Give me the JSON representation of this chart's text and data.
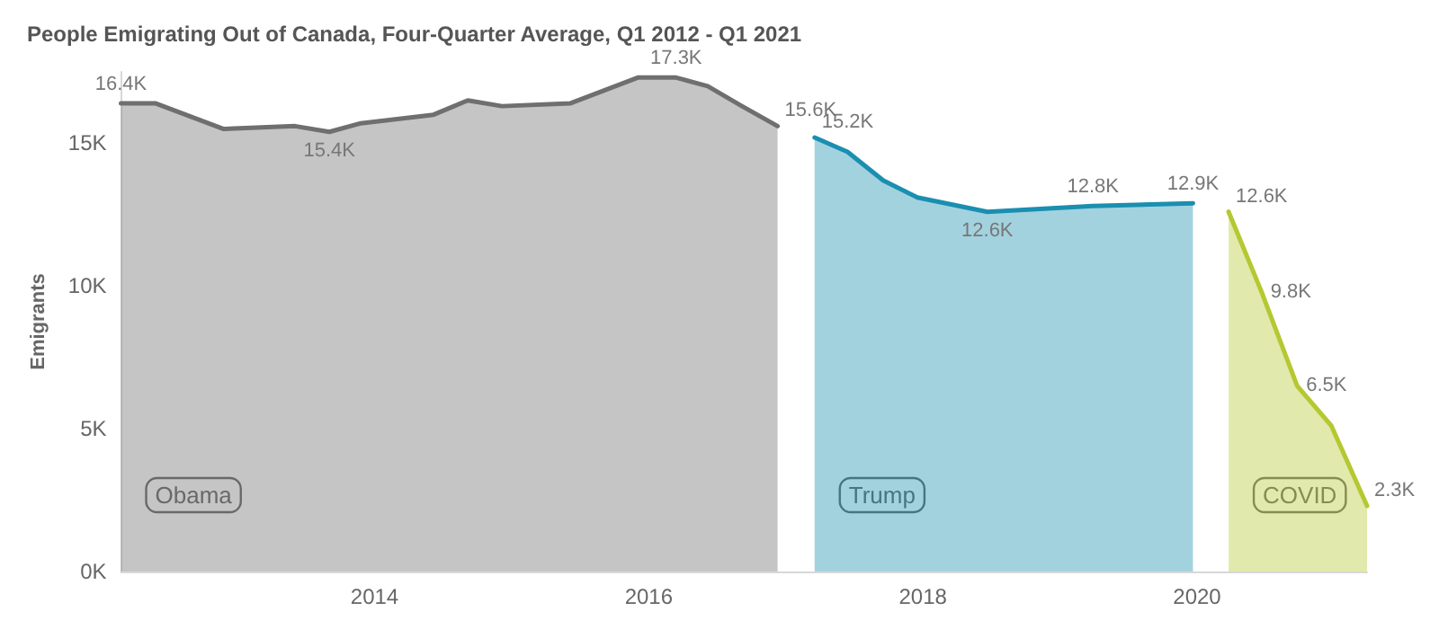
{
  "chart_data": {
    "type": "area",
    "title": "People Emigrating Out of Canada, Four-Quarter Average, Q1 2012 - Q1 2021",
    "ylabel": "Emigrants",
    "xlim": [
      2012.15,
      2021.24
    ],
    "xticks": [
      2014,
      2016,
      2018,
      2020
    ],
    "ylim": [
      0,
      17.5
    ],
    "yticks": [
      {
        "value": 0,
        "label": "0K"
      },
      {
        "value": 5,
        "label": "5K"
      },
      {
        "value": 10,
        "label": "10K"
      },
      {
        "value": 15,
        "label": "15K"
      }
    ],
    "grid": false,
    "legend": false,
    "marker": "none",
    "line_style": "solid",
    "series": [
      {
        "name": "Obama",
        "color": "#6f6f6f",
        "x": [
          2012.15,
          2012.4,
          2012.9,
          2013.42,
          2013.67,
          2013.9,
          2014.43,
          2014.68,
          2014.93,
          2015.43,
          2015.92,
          2016.2,
          2016.43,
          2016.68,
          2016.94
        ],
        "values": [
          16.4,
          16.4,
          15.5,
          15.6,
          15.4,
          15.7,
          16.0,
          16.5,
          16.3,
          16.4,
          17.3,
          17.3,
          17.0,
          16.3,
          15.6
        ],
        "value_labels": [
          "16.4K",
          null,
          null,
          null,
          "15.4K",
          null,
          null,
          null,
          null,
          null,
          null,
          "17.3K",
          null,
          null,
          "15.6K"
        ]
      },
      {
        "name": "Trump",
        "color": "#1a8fb0",
        "x": [
          2017.21,
          2017.45,
          2017.71,
          2017.96,
          2018.47,
          2019.24,
          2019.97
        ],
        "values": [
          15.2,
          14.7,
          13.7,
          13.1,
          12.6,
          12.8,
          12.9
        ],
        "value_labels": [
          "15.2K",
          null,
          null,
          null,
          "12.6K",
          "12.8K",
          "12.9K"
        ]
      },
      {
        "name": "COVID",
        "color": "#b5c832",
        "x": [
          2020.23,
          2020.47,
          2020.73,
          2020.98,
          2021.24
        ],
        "values": [
          12.6,
          9.8,
          6.5,
          5.1,
          2.3
        ],
        "value_labels": [
          "12.6K",
          "9.8K",
          "6.5K",
          null,
          "2.3K"
        ]
      }
    ]
  }
}
